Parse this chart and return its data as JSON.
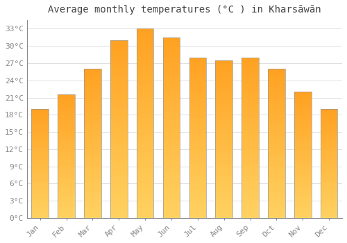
{
  "title": "Average monthly temperatures (°C ) in Kharsāwān",
  "months": [
    "Jan",
    "Feb",
    "Mar",
    "Apr",
    "May",
    "Jun",
    "Jul",
    "Aug",
    "Sep",
    "Oct",
    "Nov",
    "Dec"
  ],
  "values": [
    19,
    21.5,
    26,
    31,
    33,
    31.5,
    28,
    27.5,
    28,
    26,
    22,
    19
  ],
  "bar_color_bottom": "#FFD060",
  "bar_color_top": "#FFA020",
  "bar_edge_color": "#999999",
  "background_color": "#ffffff",
  "grid_color": "#e0e0e0",
  "yticks": [
    0,
    3,
    6,
    9,
    12,
    15,
    18,
    21,
    24,
    27,
    30,
    33
  ],
  "ylim": [
    0,
    34.5
  ],
  "tick_fontsize": 8,
  "title_fontsize": 10,
  "tick_color": "#888888",
  "spine_color": "#888888"
}
